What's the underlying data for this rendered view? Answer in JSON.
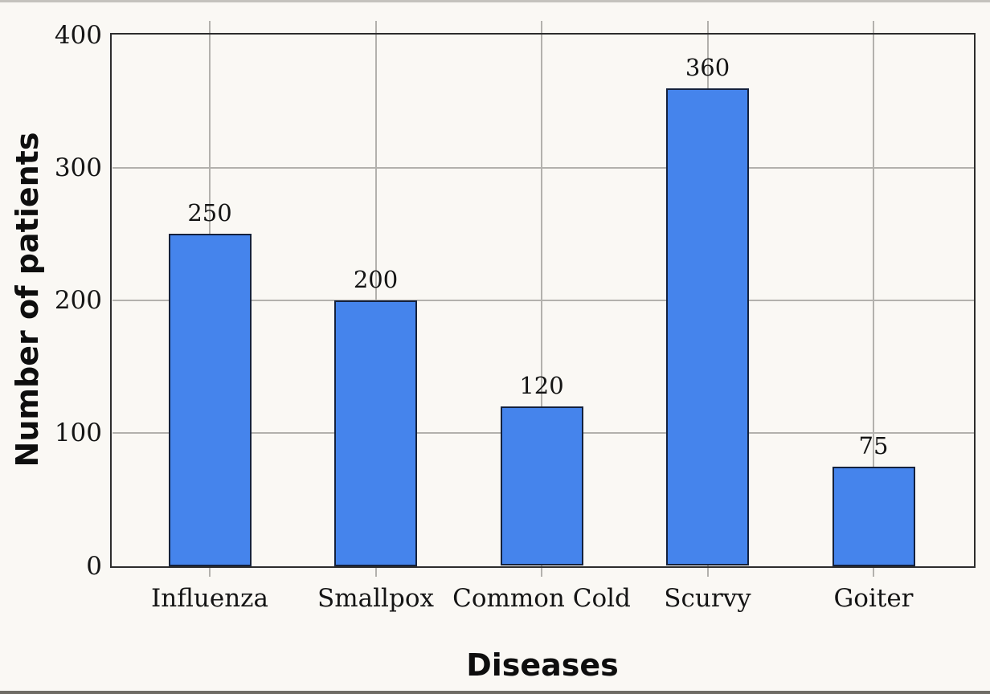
{
  "chart_data": {
    "type": "bar",
    "categories": [
      "Influenza",
      "Smallpox",
      "Common Cold",
      "Scurvy",
      "Goiter"
    ],
    "values": [
      250,
      200,
      120,
      360,
      75
    ],
    "bar_value_labels": [
      "250",
      "200",
      "120",
      "360",
      "75"
    ],
    "title": "",
    "xlabel": "Diseases",
    "ylabel": "Number of patients",
    "yticks": [
      0,
      100,
      200,
      300,
      400
    ],
    "ytick_labels": [
      "0",
      "100",
      "200",
      "300",
      "400"
    ],
    "ylim": [
      0,
      400
    ],
    "grid": true,
    "legend": false,
    "colors": {
      "bar_fill": "#4584ec",
      "bar_edge": "#14213c",
      "grid_line": "#b3b1ad",
      "frame": "#2d2d2d",
      "background": "#faf8f4",
      "text": "#141414"
    }
  }
}
